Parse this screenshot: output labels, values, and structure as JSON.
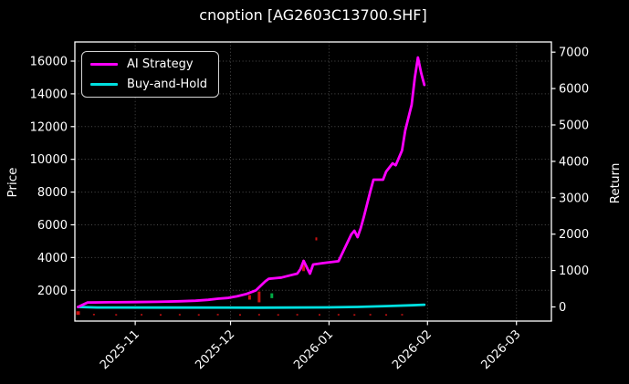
{
  "title": "cnoption [AG2603C13700.SHF]",
  "axis_labels": {
    "left": "Price",
    "right": "Return"
  },
  "colors": {
    "background": "#000000",
    "text": "#ffffff",
    "grid": "#4d4d4d",
    "spine": "#ffffff"
  },
  "chart_data": {
    "type": "line",
    "title": "cnoption [AG2603C13700.SHF]",
    "grid": "dotted, on left-axis and month ticks",
    "legend_position": "upper left",
    "x_domain": [
      "2025-10-13",
      "2026-03-12"
    ],
    "x_ticks": [
      {
        "date": "2025-11-01",
        "label": "2025-11"
      },
      {
        "date": "2025-12-01",
        "label": "2025-12"
      },
      {
        "date": "2026-01-01",
        "label": "2026-01"
      },
      {
        "date": "2026-02-01",
        "label": "2026-02"
      },
      {
        "date": "2026-03-01",
        "label": "2026-03"
      }
    ],
    "left_axis": {
      "label": "Price",
      "domain": [
        120,
        17170
      ],
      "ticks": [
        2000,
        4000,
        6000,
        8000,
        10000,
        12000,
        14000,
        16000
      ]
    },
    "right_axis": {
      "label": "Return",
      "domain": [
        -388,
        7280
      ],
      "ticks": [
        0,
        1000,
        2000,
        3000,
        4000,
        5000,
        6000,
        7000
      ]
    },
    "series": [
      {
        "name": "AI Strategy",
        "axis": "right",
        "color": "#ff00ff",
        "points": [
          [
            "2025-10-14",
            0
          ],
          [
            "2025-10-17",
            120
          ],
          [
            "2025-10-24",
            128
          ],
          [
            "2025-11-01",
            132
          ],
          [
            "2025-11-08",
            140
          ],
          [
            "2025-11-15",
            155
          ],
          [
            "2025-11-20",
            172
          ],
          [
            "2025-11-24",
            196
          ],
          [
            "2025-11-27",
            225
          ],
          [
            "2025-11-30",
            245
          ],
          [
            "2025-12-03",
            290
          ],
          [
            "2025-12-06",
            356
          ],
          [
            "2025-12-09",
            456
          ],
          [
            "2025-12-12",
            707
          ],
          [
            "2025-12-13",
            772
          ],
          [
            "2025-12-15",
            789
          ],
          [
            "2025-12-17",
            807
          ],
          [
            "2025-12-20",
            872
          ],
          [
            "2025-12-22",
            915
          ],
          [
            "2025-12-23",
            1040
          ],
          [
            "2025-12-24",
            1266
          ],
          [
            "2025-12-26",
            915
          ],
          [
            "2025-12-27",
            1165
          ],
          [
            "2025-12-30",
            1203
          ],
          [
            "2026-01-04",
            1255
          ],
          [
            "2026-01-08",
            1992
          ],
          [
            "2026-01-09",
            2093
          ],
          [
            "2026-01-10",
            1917
          ],
          [
            "2026-01-11",
            2170
          ],
          [
            "2026-01-12",
            2490
          ],
          [
            "2026-01-14",
            3170
          ],
          [
            "2026-01-15",
            3495
          ],
          [
            "2026-01-18",
            3495
          ],
          [
            "2026-01-19",
            3720
          ],
          [
            "2026-01-21",
            3945
          ],
          [
            "2026-01-22",
            3895
          ],
          [
            "2026-01-24",
            4300
          ],
          [
            "2026-01-25",
            4850
          ],
          [
            "2026-01-27",
            5550
          ],
          [
            "2026-01-28",
            6300
          ],
          [
            "2026-01-29",
            6855
          ],
          [
            "2026-01-30",
            6430
          ],
          [
            "2026-01-31",
            6100
          ]
        ]
      },
      {
        "name": "Buy-and-Hold",
        "axis": "right",
        "color": "#00e0e0",
        "points": [
          [
            "2025-10-14",
            0
          ],
          [
            "2025-10-20",
            -15
          ],
          [
            "2025-11-10",
            -18
          ],
          [
            "2025-12-10",
            -20
          ],
          [
            "2025-12-31",
            -12
          ],
          [
            "2026-01-10",
            0
          ],
          [
            "2026-01-20",
            25
          ],
          [
            "2026-01-27",
            45
          ],
          [
            "2026-01-31",
            60
          ]
        ]
      }
    ],
    "price_marks": [
      {
        "date": "2025-10-14",
        "low": 500,
        "high": 720,
        "color": "#cc1111",
        "w": 4
      },
      {
        "date": "2025-10-19",
        "low": 510,
        "high": 560,
        "color": "#cc1111",
        "w": 2
      },
      {
        "date": "2025-10-26",
        "low": 495,
        "high": 545,
        "color": "#cc1111",
        "w": 2
      },
      {
        "date": "2025-11-03",
        "low": 505,
        "high": 550,
        "color": "#cc1111",
        "w": 2
      },
      {
        "date": "2025-11-09",
        "low": 490,
        "high": 540,
        "color": "#cc1111",
        "w": 2
      },
      {
        "date": "2025-11-15",
        "low": 505,
        "high": 550,
        "color": "#cc1111",
        "w": 2
      },
      {
        "date": "2025-11-21",
        "low": 495,
        "high": 540,
        "color": "#cc1111",
        "w": 2
      },
      {
        "date": "2025-11-27",
        "low": 505,
        "high": 555,
        "color": "#cc1111",
        "w": 2
      },
      {
        "date": "2025-12-04",
        "low": 490,
        "high": 540,
        "color": "#cc1111",
        "w": 2
      },
      {
        "date": "2025-12-07",
        "low": 1430,
        "high": 1705,
        "color": "#cc1111",
        "w": 3
      },
      {
        "date": "2025-12-10",
        "low": 1265,
        "high": 1925,
        "color": "#cc1111",
        "w": 3
      },
      {
        "date": "2025-12-10",
        "low": 500,
        "high": 550,
        "color": "#cc1111",
        "w": 2
      },
      {
        "date": "2025-12-14",
        "low": 1520,
        "high": 1815,
        "color": "#00aa44",
        "w": 3
      },
      {
        "date": "2025-12-16",
        "low": 490,
        "high": 540,
        "color": "#cc1111",
        "w": 2
      },
      {
        "date": "2025-12-22",
        "low": 500,
        "high": 550,
        "color": "#cc1111",
        "w": 2
      },
      {
        "date": "2025-12-24",
        "low": 3170,
        "high": 3830,
        "color": "#cc1111",
        "w": 3
      },
      {
        "date": "2025-12-28",
        "low": 5050,
        "high": 5230,
        "color": "#cc1111",
        "w": 2
      },
      {
        "date": "2025-12-29",
        "low": 495,
        "high": 545,
        "color": "#cc1111",
        "w": 2
      },
      {
        "date": "2026-01-04",
        "low": 505,
        "high": 550,
        "color": "#cc1111",
        "w": 2
      },
      {
        "date": "2026-01-09",
        "low": 490,
        "high": 540,
        "color": "#cc1111",
        "w": 2
      },
      {
        "date": "2026-01-14",
        "low": 500,
        "high": 550,
        "color": "#cc1111",
        "w": 2
      },
      {
        "date": "2026-01-19",
        "low": 495,
        "high": 540,
        "color": "#cc1111",
        "w": 2
      },
      {
        "date": "2026-01-24",
        "low": 505,
        "high": 550,
        "color": "#cc1111",
        "w": 2
      }
    ]
  }
}
